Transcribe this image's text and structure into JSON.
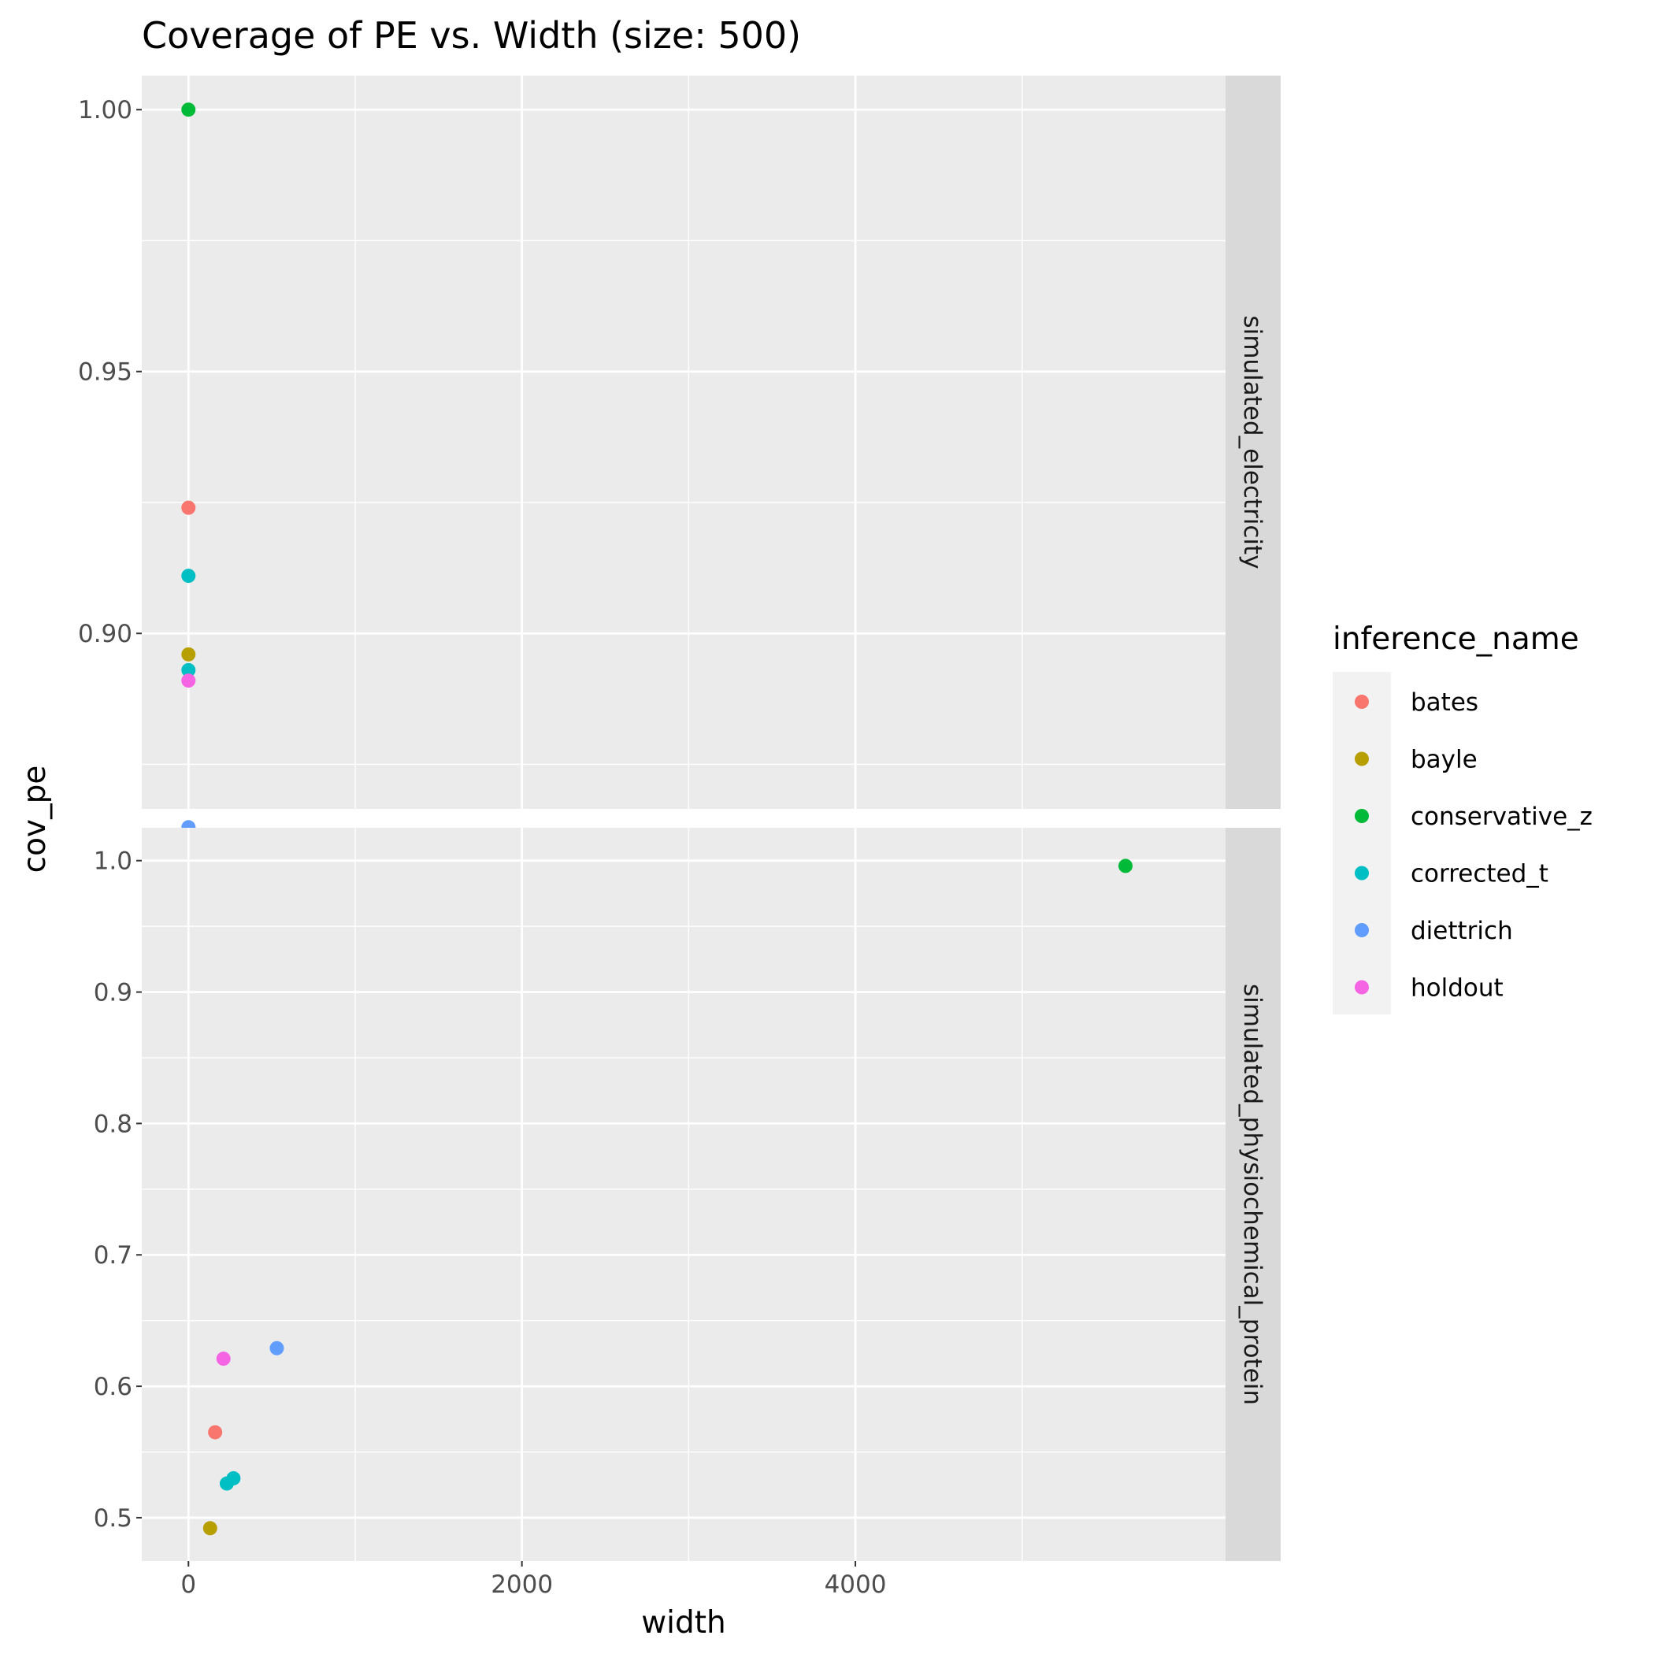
{
  "chart_data": {
    "type": "scatter",
    "title": "Coverage of PE vs. Width (size: 500)",
    "xlabel": "width",
    "ylabel": "cov_pe",
    "xlim": [
      -280,
      6220
    ],
    "x_ticks": [
      0,
      2000,
      4000
    ],
    "x_tick_labels": [
      "0",
      "2000",
      "4000"
    ],
    "grid": true,
    "legend": {
      "title": "inference_name",
      "position": "right",
      "entries": [
        {
          "name": "bates",
          "color": "#F8766D"
        },
        {
          "name": "bayle",
          "color": "#B79F00"
        },
        {
          "name": "conservative_z",
          "color": "#00BA38"
        },
        {
          "name": "corrected_t",
          "color": "#00BFC4"
        },
        {
          "name": "diettrich",
          "color": "#619CFF"
        },
        {
          "name": "holdout",
          "color": "#F564E3"
        }
      ]
    },
    "facets": [
      {
        "label": "simulated_electricity",
        "ylim": [
          0.8665,
          1.0065
        ],
        "y_ticks": [
          0.9,
          0.95,
          1.0
        ],
        "y_tick_labels": [
          "0.90",
          "0.95",
          "1.00"
        ],
        "points": [
          {
            "series": "conservative_z",
            "x": 0,
            "y": 1.0
          },
          {
            "series": "bates",
            "x": 0,
            "y": 0.924
          },
          {
            "series": "corrected_t",
            "x": 0,
            "y": 0.911
          },
          {
            "series": "bayle",
            "x": 0,
            "y": 0.896
          },
          {
            "series": "corrected_t",
            "x": 0,
            "y": 0.893
          },
          {
            "series": "holdout",
            "x": 0,
            "y": 0.891
          },
          {
            "series": "diettrich",
            "x": 0,
            "y": 0.863
          }
        ]
      },
      {
        "label": "simulated_physiochemical_protein",
        "ylim": [
          0.467,
          1.025
        ],
        "y_ticks": [
          0.5,
          0.6,
          0.7,
          0.8,
          0.9,
          1.0
        ],
        "y_tick_labels": [
          "0.5",
          "0.6",
          "0.7",
          "0.8",
          "0.9",
          "1.0"
        ],
        "points": [
          {
            "series": "conservative_z",
            "x": 5620,
            "y": 0.996
          },
          {
            "series": "diettrich",
            "x": 530,
            "y": 0.629
          },
          {
            "series": "holdout",
            "x": 210,
            "y": 0.621
          },
          {
            "series": "bates",
            "x": 160,
            "y": 0.565
          },
          {
            "series": "corrected_t",
            "x": 270,
            "y": 0.53
          },
          {
            "series": "corrected_t",
            "x": 230,
            "y": 0.526
          },
          {
            "series": "bayle",
            "x": 130,
            "y": 0.492
          }
        ]
      }
    ]
  }
}
